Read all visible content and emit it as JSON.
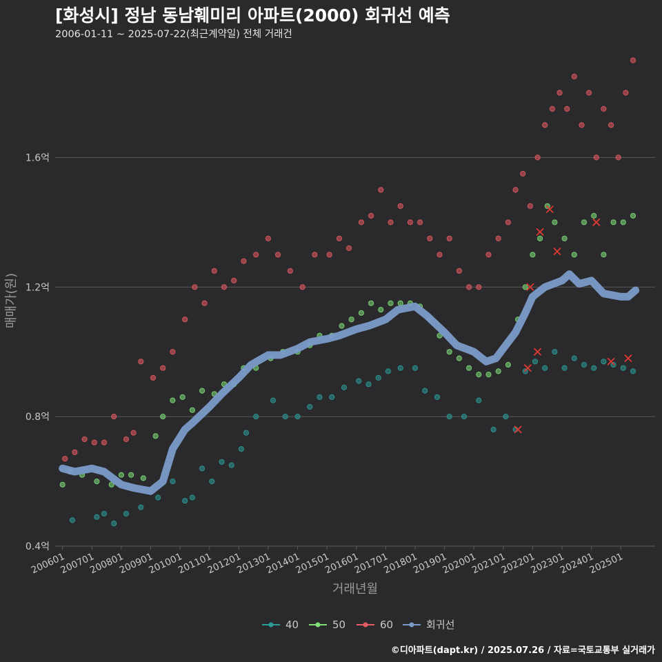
{
  "title": "[화성시] 정남 동남훼미리 아파트(2000) 회귀선 예측",
  "subtitle": "2006-01-11 ~ 2025-07-22(최근계약일) 전체 거래건",
  "caption": "©디아파트(dapt.kr) / 2025.07.26 / 자료=국토교통부 실거래가",
  "colors": {
    "background": "#2a292b",
    "grid": "#5b5a5c",
    "axis_text": "#c9c9c9",
    "s40": "#2a9d9a",
    "s50": "#7fe07a",
    "s60": "#e85a62",
    "regression": "#7b9bc9",
    "highlight_cross": "#e03a32"
  },
  "chart_data": {
    "type": "scatter",
    "xlabel": "거래년월",
    "ylabel": "매매가(원)",
    "x_range": [
      "2005-10",
      "2026-03"
    ],
    "ylim": [
      0.4,
      1.95
    ],
    "y_ticks": [
      0.4,
      0.8,
      1.2,
      1.6
    ],
    "y_tick_labels": [
      "0.4억",
      "0.8억",
      "1.2억",
      "1.6억"
    ],
    "x_ticks": [
      "200601",
      "200701",
      "200801",
      "200901",
      "201001",
      "201101",
      "201201",
      "201301",
      "201401",
      "201501",
      "201601",
      "201701",
      "201801",
      "201901",
      "202001",
      "202101",
      "202201",
      "202301",
      "202401",
      "202501"
    ],
    "grid": "horizontal",
    "legend_position": "bottom",
    "legend": [
      "40",
      "50",
      "60",
      "회귀선"
    ],
    "series": [
      {
        "name": "40",
        "values": [
          [
            "2006-05",
            0.48
          ],
          [
            "2007-03",
            0.49
          ],
          [
            "2007-06",
            0.5
          ],
          [
            "2007-10",
            0.47
          ],
          [
            "2008-03",
            0.5
          ],
          [
            "2008-09",
            0.52
          ],
          [
            "2009-04",
            0.55
          ],
          [
            "2009-10",
            0.6
          ],
          [
            "2010-03",
            0.54
          ],
          [
            "2010-06",
            0.55
          ],
          [
            "2010-10",
            0.64
          ],
          [
            "2011-02",
            0.6
          ],
          [
            "2011-06",
            0.66
          ],
          [
            "2011-10",
            0.65
          ],
          [
            "2012-02",
            0.7
          ],
          [
            "2012-04",
            0.75
          ],
          [
            "2012-08",
            0.8
          ],
          [
            "2013-03",
            0.85
          ],
          [
            "2013-08",
            0.8
          ],
          [
            "2014-01",
            0.8
          ],
          [
            "2014-06",
            0.83
          ],
          [
            "2014-10",
            0.86
          ],
          [
            "2015-03",
            0.86
          ],
          [
            "2015-08",
            0.89
          ],
          [
            "2016-02",
            0.91
          ],
          [
            "2016-06",
            0.9
          ],
          [
            "2016-10",
            0.92
          ],
          [
            "2017-02",
            0.94
          ],
          [
            "2017-07",
            0.95
          ],
          [
            "2018-01",
            0.95
          ],
          [
            "2018-05",
            0.88
          ],
          [
            "2018-10",
            0.86
          ],
          [
            "2019-03",
            0.8
          ],
          [
            "2019-09",
            0.8
          ],
          [
            "2020-03",
            0.85
          ],
          [
            "2020-09",
            0.76
          ],
          [
            "2021-02",
            0.8
          ],
          [
            "2021-06",
            0.76
          ],
          [
            "2021-10",
            0.94
          ],
          [
            "2022-02",
            0.97
          ],
          [
            "2022-06",
            0.95
          ],
          [
            "2022-10",
            1.0
          ],
          [
            "2023-02",
            0.95
          ],
          [
            "2023-06",
            0.98
          ],
          [
            "2023-10",
            0.96
          ],
          [
            "2024-02",
            0.95
          ],
          [
            "2024-06",
            0.97
          ],
          [
            "2024-10",
            0.96
          ],
          [
            "2025-02",
            0.95
          ],
          [
            "2025-06",
            0.94
          ]
        ]
      },
      {
        "name": "50",
        "values": [
          [
            "2006-01",
            0.59
          ],
          [
            "2006-04",
            0.63
          ],
          [
            "2006-09",
            0.62
          ],
          [
            "2007-03",
            0.6
          ],
          [
            "2007-09",
            0.59
          ],
          [
            "2008-01",
            0.62
          ],
          [
            "2008-05",
            0.62
          ],
          [
            "2008-10",
            0.61
          ],
          [
            "2009-03",
            0.74
          ],
          [
            "2009-06",
            0.8
          ],
          [
            "2009-10",
            0.85
          ],
          [
            "2010-02",
            0.86
          ],
          [
            "2010-06",
            0.82
          ],
          [
            "2010-10",
            0.88
          ],
          [
            "2011-03",
            0.87
          ],
          [
            "2011-07",
            0.9
          ],
          [
            "2011-11",
            0.9
          ],
          [
            "2012-03",
            0.95
          ],
          [
            "2012-08",
            0.95
          ],
          [
            "2013-02",
            0.98
          ],
          [
            "2013-07",
            1.0
          ],
          [
            "2014-01",
            1.0
          ],
          [
            "2014-06",
            1.02
          ],
          [
            "2014-10",
            1.05
          ],
          [
            "2015-03",
            1.05
          ],
          [
            "2015-07",
            1.08
          ],
          [
            "2015-11",
            1.1
          ],
          [
            "2016-03",
            1.12
          ],
          [
            "2016-07",
            1.15
          ],
          [
            "2016-11",
            1.13
          ],
          [
            "2017-03",
            1.15
          ],
          [
            "2017-07",
            1.15
          ],
          [
            "2017-11",
            1.15
          ],
          [
            "2018-03",
            1.14
          ],
          [
            "2018-07",
            1.1
          ],
          [
            "2018-11",
            1.05
          ],
          [
            "2019-03",
            1.0
          ],
          [
            "2019-07",
            0.98
          ],
          [
            "2019-11",
            0.95
          ],
          [
            "2020-03",
            0.93
          ],
          [
            "2020-07",
            0.93
          ],
          [
            "2020-11",
            0.94
          ],
          [
            "2021-03",
            0.96
          ],
          [
            "2021-07",
            1.1
          ],
          [
            "2021-10",
            1.2
          ],
          [
            "2022-01",
            1.3
          ],
          [
            "2022-04",
            1.35
          ],
          [
            "2022-07",
            1.45
          ],
          [
            "2022-10",
            1.4
          ],
          [
            "2023-02",
            1.35
          ],
          [
            "2023-06",
            1.3
          ],
          [
            "2023-10",
            1.4
          ],
          [
            "2024-02",
            1.42
          ],
          [
            "2024-06",
            1.3
          ],
          [
            "2024-10",
            1.4
          ],
          [
            "2025-02",
            1.4
          ],
          [
            "2025-06",
            1.42
          ]
        ]
      },
      {
        "name": "60",
        "values": [
          [
            "2006-02",
            0.67
          ],
          [
            "2006-06",
            0.69
          ],
          [
            "2006-10",
            0.73
          ],
          [
            "2007-02",
            0.72
          ],
          [
            "2007-06",
            0.72
          ],
          [
            "2007-10",
            0.8
          ],
          [
            "2008-03",
            0.73
          ],
          [
            "2008-06",
            0.75
          ],
          [
            "2008-09",
            0.97
          ],
          [
            "2009-02",
            0.92
          ],
          [
            "2009-06",
            0.95
          ],
          [
            "2009-10",
            1.0
          ],
          [
            "2010-03",
            1.1
          ],
          [
            "2010-07",
            1.2
          ],
          [
            "2010-11",
            1.15
          ],
          [
            "2011-03",
            1.25
          ],
          [
            "2011-07",
            1.2
          ],
          [
            "2011-11",
            1.22
          ],
          [
            "2012-03",
            1.28
          ],
          [
            "2012-08",
            1.3
          ],
          [
            "2013-01",
            1.35
          ],
          [
            "2013-05",
            1.3
          ],
          [
            "2013-10",
            1.25
          ],
          [
            "2014-03",
            1.2
          ],
          [
            "2014-08",
            1.3
          ],
          [
            "2015-02",
            1.3
          ],
          [
            "2015-06",
            1.35
          ],
          [
            "2015-10",
            1.32
          ],
          [
            "2016-03",
            1.4
          ],
          [
            "2016-07",
            1.42
          ],
          [
            "2016-11",
            1.5
          ],
          [
            "2017-03",
            1.4
          ],
          [
            "2017-07",
            1.45
          ],
          [
            "2017-11",
            1.4
          ],
          [
            "2018-03",
            1.4
          ],
          [
            "2018-07",
            1.35
          ],
          [
            "2018-11",
            1.3
          ],
          [
            "2019-03",
            1.35
          ],
          [
            "2019-07",
            1.25
          ],
          [
            "2019-11",
            1.2
          ],
          [
            "2020-03",
            1.2
          ],
          [
            "2020-07",
            1.3
          ],
          [
            "2020-11",
            1.35
          ],
          [
            "2021-03",
            1.4
          ],
          [
            "2021-06",
            1.5
          ],
          [
            "2021-09",
            1.55
          ],
          [
            "2021-12",
            1.45
          ],
          [
            "2022-03",
            1.6
          ],
          [
            "2022-06",
            1.7
          ],
          [
            "2022-09",
            1.75
          ],
          [
            "2022-12",
            1.8
          ],
          [
            "2023-03",
            1.75
          ],
          [
            "2023-06",
            1.85
          ],
          [
            "2023-09",
            1.7
          ],
          [
            "2023-12",
            1.8
          ],
          [
            "2024-03",
            1.6
          ],
          [
            "2024-06",
            1.75
          ],
          [
            "2024-09",
            1.7
          ],
          [
            "2024-12",
            1.6
          ],
          [
            "2025-03",
            1.8
          ],
          [
            "2025-06",
            1.9
          ]
        ]
      },
      {
        "name": "회귀선",
        "type": "line",
        "values": [
          [
            "2006-01",
            0.64
          ],
          [
            "2006-06",
            0.63
          ],
          [
            "2007-01",
            0.64
          ],
          [
            "2007-06",
            0.63
          ],
          [
            "2008-01",
            0.59
          ],
          [
            "2008-06",
            0.58
          ],
          [
            "2009-01",
            0.57
          ],
          [
            "2009-06",
            0.6
          ],
          [
            "2009-10",
            0.7
          ],
          [
            "2010-03",
            0.76
          ],
          [
            "2010-06",
            0.78
          ],
          [
            "2011-01",
            0.83
          ],
          [
            "2011-06",
            0.87
          ],
          [
            "2012-01",
            0.92
          ],
          [
            "2012-06",
            0.96
          ],
          [
            "2013-01",
            0.99
          ],
          [
            "2013-06",
            0.99
          ],
          [
            "2014-01",
            1.01
          ],
          [
            "2014-06",
            1.03
          ],
          [
            "2015-01",
            1.04
          ],
          [
            "2015-06",
            1.05
          ],
          [
            "2016-01",
            1.07
          ],
          [
            "2016-06",
            1.08
          ],
          [
            "2017-01",
            1.1
          ],
          [
            "2017-06",
            1.13
          ],
          [
            "2018-01",
            1.14
          ],
          [
            "2018-06",
            1.11
          ],
          [
            "2019-01",
            1.06
          ],
          [
            "2019-06",
            1.02
          ],
          [
            "2020-01",
            1.0
          ],
          [
            "2020-06",
            0.97
          ],
          [
            "2020-10",
            0.98
          ],
          [
            "2021-01",
            1.01
          ],
          [
            "2021-06",
            1.06
          ],
          [
            "2021-10",
            1.12
          ],
          [
            "2022-01",
            1.17
          ],
          [
            "2022-06",
            1.2
          ],
          [
            "2023-01",
            1.22
          ],
          [
            "2023-04",
            1.24
          ],
          [
            "2023-08",
            1.21
          ],
          [
            "2024-01",
            1.22
          ],
          [
            "2024-06",
            1.18
          ],
          [
            "2025-01",
            1.17
          ],
          [
            "2025-04",
            1.17
          ],
          [
            "2025-07",
            1.19
          ]
        ]
      }
    ],
    "highlighted": [
      [
        "2021-12",
        1.2
      ],
      [
        "2022-04",
        1.37
      ],
      [
        "2022-08",
        1.44
      ],
      [
        "2022-11",
        1.31
      ],
      [
        "2024-03",
        1.4
      ],
      [
        "2021-11",
        0.95
      ],
      [
        "2022-03",
        1.0
      ],
      [
        "2024-09",
        0.97
      ],
      [
        "2025-04",
        0.98
      ],
      [
        "2021-07",
        0.76
      ]
    ]
  }
}
